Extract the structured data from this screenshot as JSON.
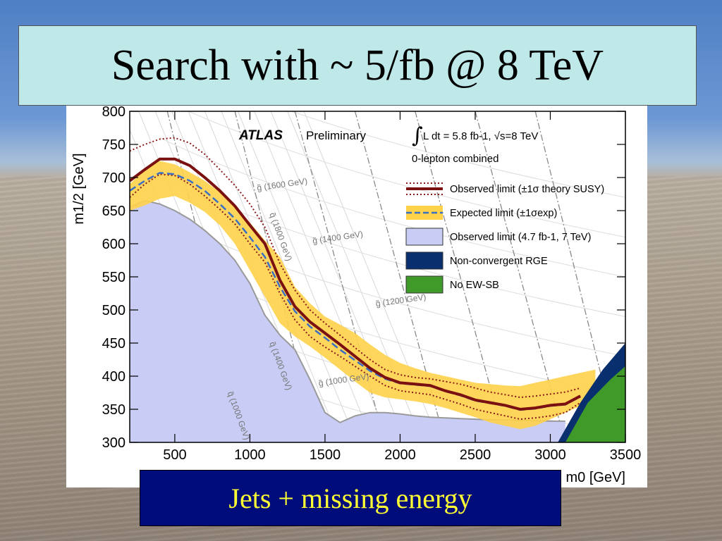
{
  "slide": {
    "title": "Search with ~ 5/fb @ 8 TeV",
    "caption": "Jets + missing energy"
  },
  "chart_data": {
    "type": "line",
    "xlabel": "m0 [GeV]",
    "ylabel": "m1/2 [GeV]",
    "xlim": [
      200,
      3500
    ],
    "ylim": [
      300,
      800
    ],
    "x_ticks": [
      "500",
      "1000",
      "1500",
      "2000",
      "2500",
      "3000",
      "3500"
    ],
    "y_ticks": [
      "300",
      "350",
      "400",
      "450",
      "500",
      "550",
      "600",
      "650",
      "700",
      "750",
      "800"
    ],
    "header_atlas": "ATLAS",
    "header_prelim": "Preliminary",
    "header_lumi": "L dt = 5.8 fb-1, √s=8 TeV",
    "header_channel": "0-lepton combined",
    "legend": [
      {
        "label": "Observed limit (±1σ theory SUSY)",
        "color": "#7a1010"
      },
      {
        "label": "Expected limit (±1σexp)",
        "color": "#3a6fc4"
      },
      {
        "label": "Observed limit (4.7 fb-1, 7 TeV)",
        "color": "#c9ccf5"
      },
      {
        "label": "Non-convergent RGE",
        "color": "#0a2f6e"
      },
      {
        "label": "No EW-SB",
        "color": "#3f9a2a"
      }
    ],
    "contour_labels": [
      {
        "text": "g̃ (1600 GeV)",
        "x": 1050,
        "y": 680
      },
      {
        "text": "q̃ (1800 GeV)",
        "x": 1130,
        "y": 645
      },
      {
        "text": "g̃ (1400 GeV)",
        "x": 1420,
        "y": 600
      },
      {
        "text": "g̃ (1200 GeV)",
        "x": 1840,
        "y": 505
      },
      {
        "text": "q̃ (1400 GeV)",
        "x": 1130,
        "y": 450
      },
      {
        "text": "q̃ (1000 GeV)",
        "x": 850,
        "y": 375
      },
      {
        "text": "g̃ (1000 GeV)",
        "x": 1460,
        "y": 385
      }
    ],
    "series": [
      {
        "name": "Observed limit",
        "color": "#7a1010",
        "points": [
          [
            200,
            695
          ],
          [
            300,
            712
          ],
          [
            400,
            728
          ],
          [
            500,
            728
          ],
          [
            600,
            718
          ],
          [
            700,
            700
          ],
          [
            800,
            680
          ],
          [
            900,
            657
          ],
          [
            1000,
            628
          ],
          [
            1100,
            600
          ],
          [
            1200,
            545
          ],
          [
            1300,
            505
          ],
          [
            1400,
            482
          ],
          [
            1500,
            465
          ],
          [
            1600,
            448
          ],
          [
            1700,
            430
          ],
          [
            1800,
            412
          ],
          [
            1900,
            398
          ],
          [
            2000,
            390
          ],
          [
            2100,
            388
          ],
          [
            2200,
            386
          ],
          [
            2300,
            378
          ],
          [
            2400,
            372
          ],
          [
            2500,
            364
          ],
          [
            2600,
            360
          ],
          [
            2700,
            356
          ],
          [
            2800,
            350
          ],
          [
            2900,
            352
          ],
          [
            3000,
            356
          ],
          [
            3100,
            358
          ],
          [
            3200,
            370
          ]
        ]
      },
      {
        "name": "Expected limit",
        "color": "#3a6fc4",
        "points": [
          [
            200,
            680
          ],
          [
            300,
            695
          ],
          [
            400,
            707
          ],
          [
            500,
            705
          ],
          [
            600,
            695
          ],
          [
            700,
            680
          ],
          [
            800,
            660
          ],
          [
            900,
            638
          ],
          [
            1000,
            610
          ],
          [
            1100,
            580
          ],
          [
            1200,
            535
          ],
          [
            1300,
            498
          ],
          [
            1400,
            475
          ],
          [
            1500,
            458
          ],
          [
            1600,
            440
          ],
          [
            1700,
            424
          ],
          [
            1800,
            408
          ],
          [
            1900,
            396
          ],
          [
            2000,
            389
          ],
          [
            2100,
            387
          ],
          [
            2200,
            385
          ],
          [
            2300,
            377
          ],
          [
            2400,
            371
          ],
          [
            2500,
            363
          ],
          [
            2600,
            359
          ],
          [
            2700,
            355
          ],
          [
            2800,
            349
          ],
          [
            2900,
            351
          ],
          [
            3000,
            355
          ],
          [
            3100,
            357
          ],
          [
            3200,
            369
          ]
        ]
      }
    ],
    "expected_band": {
      "upper": [
        [
          200,
          690
        ],
        [
          300,
          712
        ],
        [
          400,
          725
        ],
        [
          500,
          720
        ],
        [
          600,
          708
        ],
        [
          700,
          695
        ],
        [
          800,
          678
        ],
        [
          900,
          658
        ],
        [
          1000,
          632
        ],
        [
          1100,
          605
        ],
        [
          1200,
          580
        ],
        [
          1300,
          535
        ],
        [
          1400,
          510
        ],
        [
          1500,
          490
        ],
        [
          1600,
          478
        ],
        [
          1700,
          465
        ],
        [
          1800,
          448
        ],
        [
          1900,
          432
        ],
        [
          2000,
          420
        ],
        [
          2100,
          412
        ],
        [
          2200,
          405
        ],
        [
          2300,
          400
        ],
        [
          2400,
          395
        ],
        [
          2500,
          390
        ],
        [
          2600,
          388
        ],
        [
          2700,
          386
        ],
        [
          2800,
          385
        ],
        [
          2900,
          390
        ],
        [
          3000,
          395
        ],
        [
          3100,
          400
        ],
        [
          3200,
          405
        ],
        [
          3300,
          410
        ]
      ],
      "lower": [
        [
          3300,
          385
        ],
        [
          3200,
          355
        ],
        [
          3100,
          345
        ],
        [
          3000,
          335
        ],
        [
          2900,
          325
        ],
        [
          2800,
          320
        ],
        [
          2700,
          325
        ],
        [
          2600,
          330
        ],
        [
          2500,
          338
        ],
        [
          2400,
          345
        ],
        [
          2300,
          352
        ],
        [
          2200,
          358
        ],
        [
          2100,
          362
        ],
        [
          2000,
          365
        ],
        [
          1900,
          368
        ],
        [
          1800,
          375
        ],
        [
          1700,
          392
        ],
        [
          1600,
          410
        ],
        [
          1500,
          428
        ],
        [
          1400,
          445
        ],
        [
          1300,
          460
        ],
        [
          1200,
          480
        ],
        [
          1100,
          520
        ],
        [
          1000,
          560
        ],
        [
          900,
          600
        ],
        [
          800,
          628
        ],
        [
          700,
          648
        ],
        [
          600,
          662
        ],
        [
          500,
          672
        ],
        [
          400,
          668
        ],
        [
          300,
          658
        ],
        [
          200,
          650
        ]
      ]
    },
    "theory_up": [
      [
        200,
        740
      ],
      [
        300,
        750
      ],
      [
        400,
        758
      ],
      [
        500,
        760
      ],
      [
        600,
        752
      ],
      [
        700,
        735
      ],
      [
        800,
        712
      ],
      [
        900,
        688
      ],
      [
        1000,
        660
      ],
      [
        1100,
        625
      ],
      [
        1200,
        570
      ],
      [
        1300,
        530
      ],
      [
        1400,
        500
      ],
      [
        1500,
        480
      ],
      [
        1600,
        462
      ],
      [
        1700,
        443
      ],
      [
        1800,
        425
      ],
      [
        1900,
        410
      ],
      [
        2000,
        402
      ],
      [
        2100,
        398
      ],
      [
        2200,
        396
      ],
      [
        2300,
        392
      ],
      [
        2400,
        388
      ],
      [
        2500,
        382
      ],
      [
        2600,
        376
      ],
      [
        2700,
        372
      ],
      [
        2800,
        368
      ],
      [
        2900,
        370
      ],
      [
        3000,
        373
      ],
      [
        3100,
        376
      ],
      [
        3200,
        382
      ]
    ],
    "theory_down": [
      [
        200,
        670
      ],
      [
        300,
        690
      ],
      [
        400,
        705
      ],
      [
        500,
        703
      ],
      [
        600,
        690
      ],
      [
        700,
        672
      ],
      [
        800,
        652
      ],
      [
        900,
        630
      ],
      [
        1000,
        600
      ],
      [
        1100,
        572
      ],
      [
        1200,
        525
      ],
      [
        1300,
        485
      ],
      [
        1400,
        460
      ],
      [
        1500,
        444
      ],
      [
        1600,
        430
      ],
      [
        1700,
        415
      ],
      [
        1800,
        400
      ],
      [
        1900,
        386
      ],
      [
        2000,
        378
      ],
      [
        2100,
        375
      ],
      [
        2200,
        372
      ],
      [
        2300,
        365
      ],
      [
        2400,
        358
      ],
      [
        2500,
        350
      ],
      [
        2600,
        345
      ],
      [
        2700,
        340
      ],
      [
        2800,
        335
      ],
      [
        2900,
        337
      ],
      [
        3000,
        340
      ],
      [
        3100,
        345
      ],
      [
        3200,
        360
      ]
    ],
    "previous_limit_7TeV": [
      [
        200,
        655
      ],
      [
        300,
        665
      ],
      [
        400,
        660
      ],
      [
        500,
        650
      ],
      [
        600,
        637
      ],
      [
        700,
        620
      ],
      [
        800,
        600
      ],
      [
        900,
        575
      ],
      [
        1000,
        540
      ],
      [
        1100,
        492
      ],
      [
        1200,
        462
      ],
      [
        1300,
        440
      ],
      [
        1400,
        395
      ],
      [
        1500,
        345
      ],
      [
        1600,
        330
      ],
      [
        1700,
        340
      ],
      [
        1800,
        345
      ],
      [
        1900,
        345
      ],
      [
        2000,
        343
      ],
      [
        2100,
        340
      ],
      [
        2200,
        338
      ],
      [
        2300,
        337
      ],
      [
        2400,
        336
      ],
      [
        2500,
        335
      ],
      [
        2600,
        334
      ],
      [
        2700,
        334
      ],
      [
        2800,
        333
      ],
      [
        2900,
        333
      ],
      [
        3000,
        332
      ],
      [
        3100,
        332
      ]
    ],
    "non_convergent": [
      [
        3050,
        300
      ],
      [
        3200,
        360
      ],
      [
        3350,
        410
      ],
      [
        3500,
        450
      ],
      [
        3500,
        300
      ]
    ],
    "no_ewsb": [
      [
        3100,
        300
      ],
      [
        3250,
        360
      ],
      [
        3400,
        395
      ],
      [
        3500,
        415
      ],
      [
        3500,
        300
      ]
    ]
  }
}
